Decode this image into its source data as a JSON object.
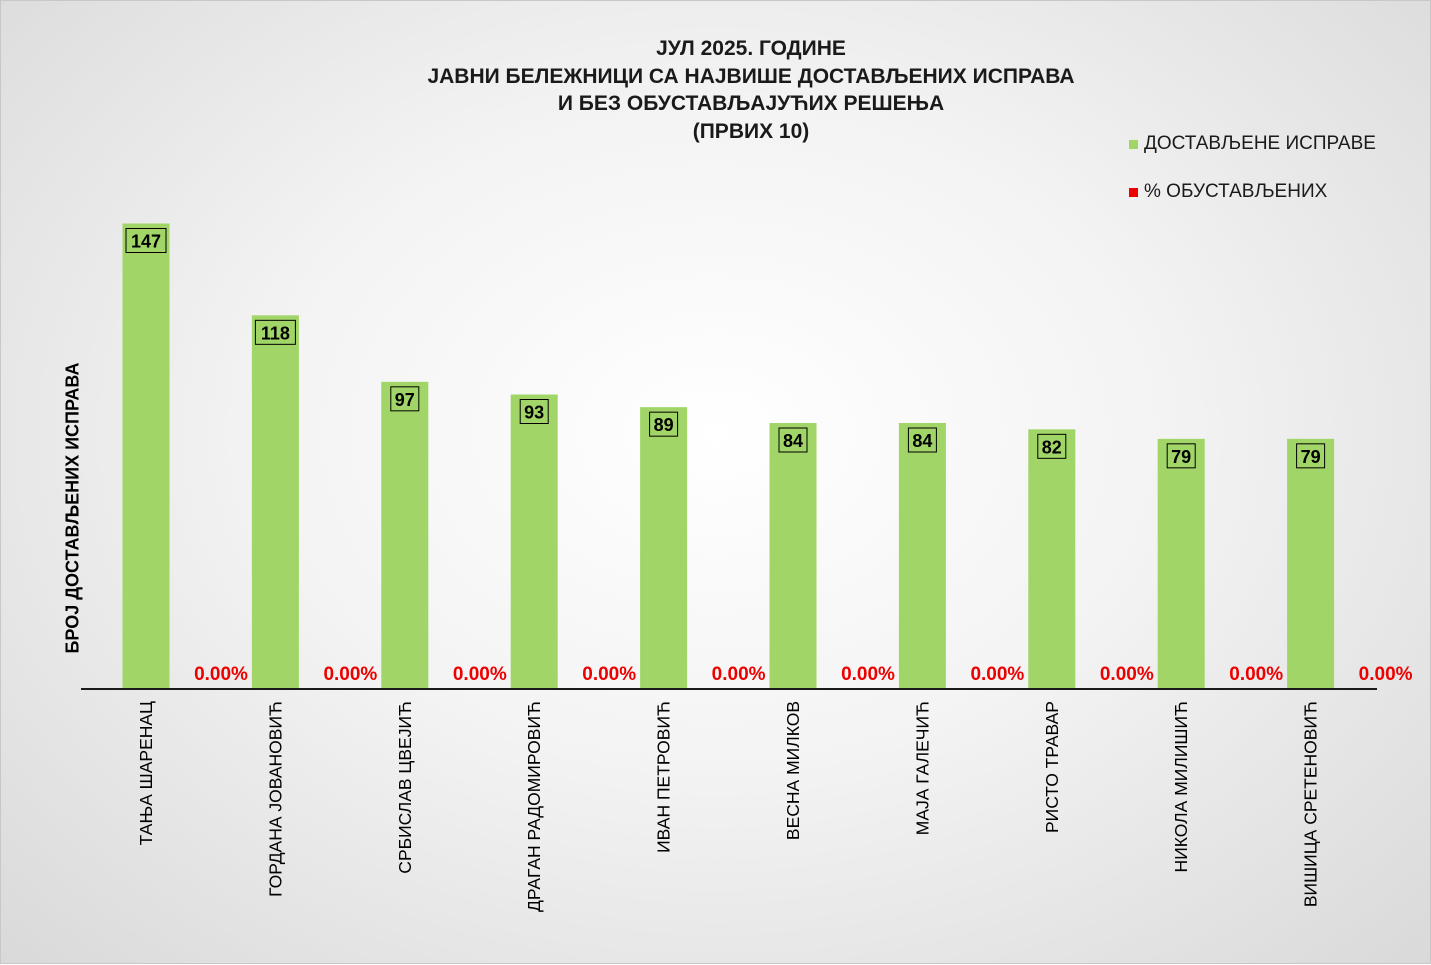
{
  "title_lines": [
    "ЈУЛ 2025. ГОДИНЕ",
    "ЈАВНИ БЕЛЕЖНИЦИ СА НАЈВИШЕ ДОСТАВЉЕНИХ ИСПРАВА",
    "И БЕЗ ОБУСТАВЉАЈУЋИХ РЕШЕЊА",
    "(ПРВИХ 10)"
  ],
  "colors": {
    "bar": "#a1d567",
    "pct": "#ee0000"
  },
  "chart_data": {
    "type": "bar",
    "title": "ЈУЛ 2025. ГОДИНЕ ЈАВНИ БЕЛЕЖНИЦИ СА НАЈВИШЕ ДОСТАВЉЕНИХ ИСПРАВА И БЕЗ ОБУСТАВЉАЈУЋИХ РЕШЕЊА (ПРВИХ 10)",
    "ylabel": "БРОЈ ДОСТАВЉЕНИХ ИСПРАВА",
    "xlabel": "",
    "ylim": [
      0,
      150
    ],
    "grid": false,
    "legend_position": "top-right",
    "categories": [
      "ТАЊА ШАРЕНАЦ",
      "ГОРДАНА ЈОВАНОВИЋ",
      "СРБИСЛАВ ЦВЕЈИЋ",
      "ДРАГАН РАДОМИРОВИЋ",
      "ИВАН ПЕТРОВИЋ",
      "ВЕСНА МИЛКОВ",
      "МАЈА ГАЛЕЧИЋ",
      "РИСТО ТРАВАР",
      "НИКОЛА МИЛИШИЋ",
      "ВИШИЦА СРЕТЕНОВИЋ"
    ],
    "series": [
      {
        "name": "ДОСТАВЉЕНЕ ИСПРАВЕ",
        "values": [
          147,
          118,
          97,
          93,
          89,
          84,
          84,
          82,
          79,
          79
        ]
      },
      {
        "name": "% ОБУСТАВЉЕНИХ",
        "values": [
          0,
          0,
          0,
          0,
          0,
          0,
          0,
          0,
          0,
          0
        ],
        "labels": [
          "0.00%",
          "0.00%",
          "0.00%",
          "0.00%",
          "0.00%",
          "0.00%",
          "0.00%",
          "0.00%",
          "0.00%",
          "0.00%"
        ]
      }
    ]
  }
}
